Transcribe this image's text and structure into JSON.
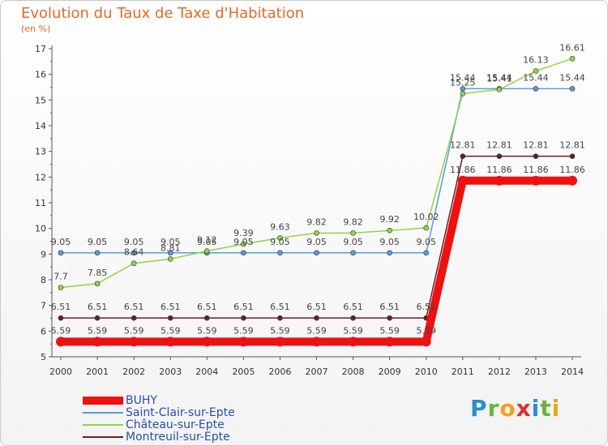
{
  "header": {
    "title": "Evolution du Taux de Taxe d'Habitation",
    "subtitle": "(en %)"
  },
  "logo": {
    "letters": [
      "P",
      "r",
      "o",
      "x",
      "i",
      "t",
      "i"
    ],
    "colors": [
      "#2a8fd0",
      "#6ab23e",
      "#f0a020",
      "#d8322c",
      "#2a8fd0",
      "#6ab23e",
      "#f0a020"
    ]
  },
  "chart_data": {
    "type": "line",
    "title": "Evolution du Taux de Taxe d'Habitation",
    "subtitle": "(en %)",
    "x": [
      2000,
      2001,
      2002,
      2003,
      2004,
      2005,
      2006,
      2007,
      2008,
      2009,
      2010,
      2011,
      2012,
      2013,
      2014
    ],
    "ylim": [
      5,
      17
    ],
    "yticks": [
      5,
      6,
      7,
      8,
      9,
      10,
      11,
      12,
      13,
      14,
      15,
      16,
      17
    ],
    "grid": false,
    "legend": "bottom-left",
    "series": [
      {
        "name": "BUHY",
        "color": "#ee1111",
        "values": [
          5.59,
          5.59,
          5.59,
          5.59,
          5.59,
          5.59,
          5.59,
          5.59,
          5.59,
          5.59,
          5.59,
          11.86,
          11.86,
          11.86,
          11.86
        ],
        "labels": [
          "5.59",
          "5.59",
          "5.59",
          "5.59",
          "5.59",
          "5.59",
          "5.59",
          "5.59",
          "5.59",
          "5.59",
          "5.59",
          "11.86",
          "11.86",
          "11.86",
          "11.86"
        ]
      },
      {
        "name": "Saint-Clair-sur-Epte",
        "color": "#5b9bd5",
        "values": [
          9.05,
          9.05,
          9.05,
          9.05,
          9.05,
          9.05,
          9.05,
          9.05,
          9.05,
          9.05,
          9.05,
          15.44,
          15.44,
          15.44,
          15.44
        ],
        "labels": [
          "9.05",
          "9.05",
          "9.05",
          "9.05",
          "9.05",
          "9.05",
          "9.05",
          "9.05",
          "9.05",
          "9.05",
          "9.05",
          "15.44",
          "15.44",
          "15.44",
          "15.44"
        ]
      },
      {
        "name": "Château-sur-Epte",
        "color": "#8fd44a",
        "values": [
          7.7,
          7.85,
          8.64,
          8.81,
          9.12,
          9.39,
          9.63,
          9.82,
          9.82,
          9.92,
          10.02,
          15.25,
          15.41,
          16.13,
          16.61
        ],
        "labels": [
          "7.7",
          "7.85",
          "8.64",
          "8.81",
          "9.12",
          "9.39",
          "9.63",
          "9.82",
          "9.82",
          "9.92",
          "10.02",
          "15.25",
          "15.41",
          "16.13",
          "16.61"
        ]
      },
      {
        "name": "Montreuil-sur-Epte",
        "color": "#6b1f1f",
        "values": [
          6.51,
          6.51,
          6.51,
          6.51,
          6.51,
          6.51,
          6.51,
          6.51,
          6.51,
          6.51,
          6.51,
          12.81,
          12.81,
          12.81,
          12.81
        ],
        "labels": [
          "6.51",
          "6.51",
          "6.51",
          "6.51",
          "6.51",
          "6.51",
          "6.51",
          "6.51",
          "6.51",
          "6.51",
          "6.51",
          "12.81",
          "12.81",
          "12.81",
          "12.81"
        ]
      }
    ]
  }
}
